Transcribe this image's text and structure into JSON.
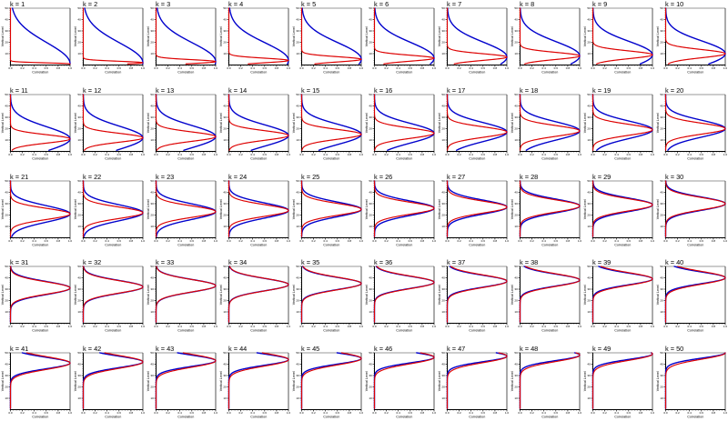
{
  "figure": {
    "background": "#ffffff",
    "grid": {
      "rows": 5,
      "cols": 10,
      "panel_count": 50
    }
  },
  "chart_data": {
    "type": "line",
    "layout": "5x10 grid of vertical correlation-profile panels, one per model level k = 1..50",
    "xlabel": "Correlation",
    "ylabel": "Vertical Level",
    "xlim": [
      0,
      1
    ],
    "ylim": [
      0,
      50
    ],
    "xticks": [
      0,
      0.2,
      0.4,
      0.6,
      0.8,
      1.0
    ],
    "xtick_labels": [
      "0.0",
      "0.2",
      "0.4",
      "0.6",
      "0.8",
      "1.0"
    ],
    "yticks": [
      10,
      20,
      30,
      40,
      50
    ],
    "ytick_labels": [
      "10",
      "20",
      "30",
      "40",
      "50"
    ],
    "grid_on": false,
    "legend": "none",
    "colors": {
      "blue_series": "#0000cc",
      "red_series": "#dd0000",
      "axis": "#000000",
      "frame_top": "#999999",
      "frame_right": "#444444"
    },
    "model": "correlation(level) = exp(-0.5*((level-k)/sigma)^2); peak value 1.0 at level k; blue curve uses blue_sigma, red curve uses red_sigma; levels sampled 1..50",
    "panels": [
      {
        "k": 1,
        "title": "k = 1",
        "blue_sigma": 18.8,
        "red_sigma": 0.9
      },
      {
        "k": 2,
        "title": "k = 2",
        "blue_sigma": 17.6,
        "red_sigma": 1.3
      },
      {
        "k": 3,
        "title": "k = 3",
        "blue_sigma": 16.6,
        "red_sigma": 1.7
      },
      {
        "k": 4,
        "title": "k = 4",
        "blue_sigma": 15.6,
        "red_sigma": 2.0
      },
      {
        "k": 5,
        "title": "k = 5",
        "blue_sigma": 14.7,
        "red_sigma": 2.3
      },
      {
        "k": 6,
        "title": "k = 6",
        "blue_sigma": 13.9,
        "red_sigma": 2.6
      },
      {
        "k": 7,
        "title": "k = 7",
        "blue_sigma": 13.1,
        "red_sigma": 2.9
      },
      {
        "k": 8,
        "title": "k = 8",
        "blue_sigma": 12.5,
        "red_sigma": 3.1
      },
      {
        "k": 9,
        "title": "k = 9",
        "blue_sigma": 11.8,
        "red_sigma": 3.4
      },
      {
        "k": 10,
        "title": "k = 10",
        "blue_sigma": 11.2,
        "red_sigma": 3.6
      },
      {
        "k": 11,
        "title": "k = 11",
        "blue_sigma": 10.7,
        "red_sigma": 3.7
      },
      {
        "k": 12,
        "title": "k = 12",
        "blue_sigma": 10.2,
        "red_sigma": 3.9
      },
      {
        "k": 13,
        "title": "k = 13",
        "blue_sigma": 9.7,
        "red_sigma": 4.1
      },
      {
        "k": 14,
        "title": "k = 14",
        "blue_sigma": 9.3,
        "red_sigma": 4.2
      },
      {
        "k": 15,
        "title": "k = 15",
        "blue_sigma": 8.9,
        "red_sigma": 4.3
      },
      {
        "k": 16,
        "title": "k = 16",
        "blue_sigma": 8.6,
        "red_sigma": 4.5
      },
      {
        "k": 17,
        "title": "k = 17",
        "blue_sigma": 8.3,
        "red_sigma": 4.6
      },
      {
        "k": 18,
        "title": "k = 18",
        "blue_sigma": 8.0,
        "red_sigma": 4.7
      },
      {
        "k": 19,
        "title": "k = 19",
        "blue_sigma": 7.7,
        "red_sigma": 4.8
      },
      {
        "k": 20,
        "title": "k = 20",
        "blue_sigma": 7.4,
        "red_sigma": 4.8
      },
      {
        "k": 21,
        "title": "k = 21",
        "blue_sigma": 7.2,
        "red_sigma": 4.9
      },
      {
        "k": 22,
        "title": "k = 22",
        "blue_sigma": 7.0,
        "red_sigma": 5.0
      },
      {
        "k": 23,
        "title": "k = 23",
        "blue_sigma": 6.8,
        "red_sigma": 5.0
      },
      {
        "k": 24,
        "title": "k = 24",
        "blue_sigma": 6.6,
        "red_sigma": 5.1
      },
      {
        "k": 25,
        "title": "k = 25",
        "blue_sigma": 6.4,
        "red_sigma": 5.2
      },
      {
        "k": 26,
        "title": "k = 26",
        "blue_sigma": 6.3,
        "red_sigma": 5.2
      },
      {
        "k": 27,
        "title": "k = 27",
        "blue_sigma": 6.1,
        "red_sigma": 5.2
      },
      {
        "k": 28,
        "title": "k = 28",
        "blue_sigma": 6.0,
        "red_sigma": 5.3
      },
      {
        "k": 29,
        "title": "k = 29",
        "blue_sigma": 5.9,
        "red_sigma": 5.3
      },
      {
        "k": 30,
        "title": "k = 30",
        "blue_sigma": 5.8,
        "red_sigma": 5.4
      },
      {
        "k": 31,
        "title": "k = 31",
        "blue_sigma": 5.7,
        "red_sigma": 5.4
      },
      {
        "k": 32,
        "title": "k = 32",
        "blue_sigma": 5.6,
        "red_sigma": 5.4
      },
      {
        "k": 33,
        "title": "k = 33",
        "blue_sigma": 5.5,
        "red_sigma": 5.4
      },
      {
        "k": 34,
        "title": "k = 34",
        "blue_sigma": 5.4,
        "red_sigma": 5.5
      },
      {
        "k": 35,
        "title": "k = 35",
        "blue_sigma": 5.3,
        "red_sigma": 5.5
      },
      {
        "k": 36,
        "title": "k = 36",
        "blue_sigma": 5.3,
        "red_sigma": 5.5
      },
      {
        "k": 37,
        "title": "k = 37",
        "blue_sigma": 5.2,
        "red_sigma": 5.5
      },
      {
        "k": 38,
        "title": "k = 38",
        "blue_sigma": 5.2,
        "red_sigma": 5.5
      },
      {
        "k": 39,
        "title": "k = 39",
        "blue_sigma": 5.1,
        "red_sigma": 5.5
      },
      {
        "k": 40,
        "title": "k = 40",
        "blue_sigma": 5.1,
        "red_sigma": 5.6
      },
      {
        "k": 41,
        "title": "k = 41",
        "blue_sigma": 5.0,
        "red_sigma": 5.6
      },
      {
        "k": 42,
        "title": "k = 42",
        "blue_sigma": 5.0,
        "red_sigma": 5.6
      },
      {
        "k": 43,
        "title": "k = 43",
        "blue_sigma": 4.9,
        "red_sigma": 5.6
      },
      {
        "k": 44,
        "title": "k = 44",
        "blue_sigma": 4.9,
        "red_sigma": 5.6
      },
      {
        "k": 45,
        "title": "k = 45",
        "blue_sigma": 4.9,
        "red_sigma": 5.6
      },
      {
        "k": 46,
        "title": "k = 46",
        "blue_sigma": 4.8,
        "red_sigma": 5.6
      },
      {
        "k": 47,
        "title": "k = 47",
        "blue_sigma": 4.8,
        "red_sigma": 5.6
      },
      {
        "k": 48,
        "title": "k = 48",
        "blue_sigma": 4.8,
        "red_sigma": 5.6
      },
      {
        "k": 49,
        "title": "k = 49",
        "blue_sigma": 4.8,
        "red_sigma": 5.6
      },
      {
        "k": 50,
        "title": "k = 50",
        "blue_sigma": 4.7,
        "red_sigma": 5.6
      }
    ]
  }
}
